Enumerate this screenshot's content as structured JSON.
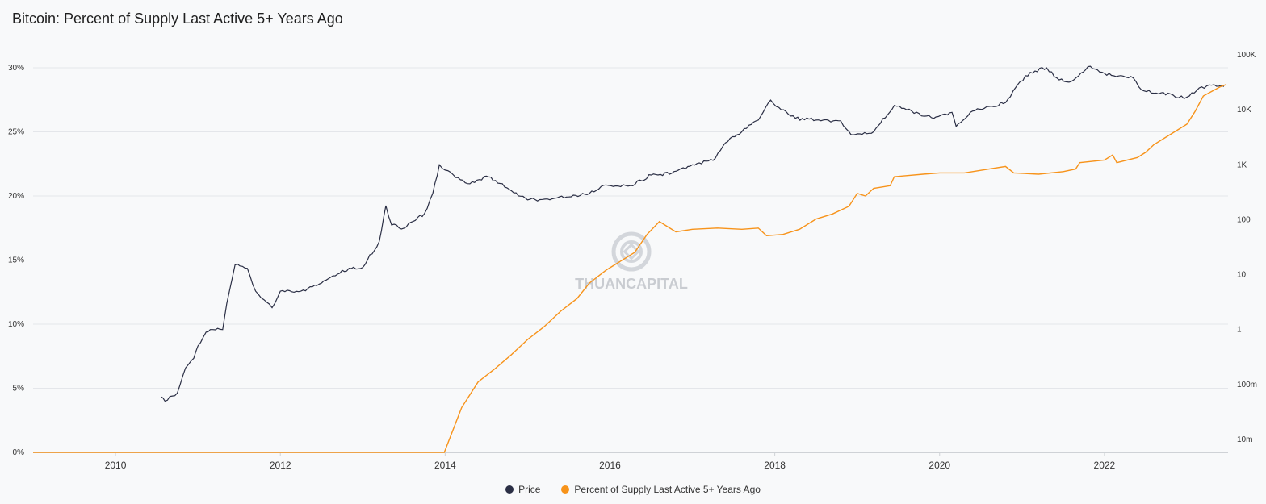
{
  "title": "Bitcoin: Percent of Supply Last Active 5+ Years Ago",
  "watermark": "THUANCAPITAL",
  "colors": {
    "price": "#2b2f45",
    "supply": "#f7931a",
    "grid": "#e4e6ea",
    "background": "#f8f9fa"
  },
  "legend": [
    {
      "label": "Price",
      "color": "#2b2f45"
    },
    {
      "label": "Percent of Supply Last Active 5+ Years Ago",
      "color": "#f7931a"
    }
  ],
  "chart_data": {
    "type": "line",
    "title": "Bitcoin: Percent of Supply Last Active 5+ Years Ago",
    "x_range": [
      2009.0,
      2023.5
    ],
    "x_ticks": [
      "2010",
      "2012",
      "2014",
      "2016",
      "2018",
      "2020",
      "2022"
    ],
    "y_left": {
      "range": [
        0,
        30
      ],
      "ticks": [
        "0%",
        "5%",
        "10%",
        "15%",
        "20%",
        "25%",
        "30%"
      ],
      "unit": "percent"
    },
    "y_right": {
      "scale": "log",
      "range": [
        0.01,
        100000
      ],
      "ticks": [
        "10m",
        "100m",
        "1",
        "10",
        "100",
        "1K",
        "10K",
        "100K"
      ]
    },
    "grid": true,
    "legend_position": "bottom",
    "series": [
      {
        "name": "Price",
        "axis": "right",
        "points": [
          [
            2010.55,
            0.06
          ],
          [
            2010.6,
            0.05
          ],
          [
            2010.75,
            0.07
          ],
          [
            2010.85,
            0.2
          ],
          [
            2010.95,
            0.3
          ],
          [
            2011.0,
            0.5
          ],
          [
            2011.1,
            0.9
          ],
          [
            2011.15,
            1.0
          ],
          [
            2011.3,
            1.0
          ],
          [
            2011.35,
            3.0
          ],
          [
            2011.45,
            15.0
          ],
          [
            2011.6,
            13.0
          ],
          [
            2011.7,
            5.0
          ],
          [
            2011.8,
            3.5
          ],
          [
            2011.9,
            2.5
          ],
          [
            2012.0,
            5.0
          ],
          [
            2012.25,
            5.0
          ],
          [
            2012.5,
            7.0
          ],
          [
            2012.75,
            12.0
          ],
          [
            2013.0,
            13.5
          ],
          [
            2013.2,
            40.0
          ],
          [
            2013.28,
            180.0
          ],
          [
            2013.35,
            80.0
          ],
          [
            2013.5,
            70.0
          ],
          [
            2013.75,
            130.0
          ],
          [
            2013.85,
            300.0
          ],
          [
            2013.93,
            1000.0
          ],
          [
            2014.0,
            800.0
          ],
          [
            2014.1,
            650.0
          ],
          [
            2014.3,
            450.0
          ],
          [
            2014.5,
            620.0
          ],
          [
            2014.75,
            380.0
          ],
          [
            2015.0,
            230.0
          ],
          [
            2015.3,
            240.0
          ],
          [
            2015.5,
            260.0
          ],
          [
            2015.75,
            300.0
          ],
          [
            2015.95,
            430.0
          ],
          [
            2016.25,
            420.0
          ],
          [
            2016.5,
            650.0
          ],
          [
            2016.75,
            700.0
          ],
          [
            2017.0,
            1000.0
          ],
          [
            2017.25,
            1200.0
          ],
          [
            2017.4,
            2500.0
          ],
          [
            2017.6,
            4000.0
          ],
          [
            2017.8,
            6500.0
          ],
          [
            2017.95,
            15000.0
          ],
          [
            2018.05,
            11000.0
          ],
          [
            2018.25,
            7000.0
          ],
          [
            2018.5,
            6500.0
          ],
          [
            2018.8,
            6300.0
          ],
          [
            2018.9,
            4000.0
          ],
          [
            2018.95,
            3500.0
          ],
          [
            2019.2,
            4000.0
          ],
          [
            2019.45,
            12000.0
          ],
          [
            2019.6,
            10000.0
          ],
          [
            2019.9,
            7200.0
          ],
          [
            2020.15,
            9000.0
          ],
          [
            2020.2,
            5000.0
          ],
          [
            2020.4,
            9500.0
          ],
          [
            2020.6,
            11500.0
          ],
          [
            2020.8,
            13500.0
          ],
          [
            2020.95,
            29000.0
          ],
          [
            2021.1,
            48000.0
          ],
          [
            2021.3,
            58000.0
          ],
          [
            2021.45,
            35000.0
          ],
          [
            2021.6,
            33000.0
          ],
          [
            2021.8,
            61000.0
          ],
          [
            2022.0,
            46000.0
          ],
          [
            2022.2,
            42000.0
          ],
          [
            2022.35,
            38000.0
          ],
          [
            2022.45,
            23000.0
          ],
          [
            2022.6,
            20000.0
          ],
          [
            2022.8,
            19500.0
          ],
          [
            2022.9,
            16500.0
          ],
          [
            2023.0,
            17000.0
          ],
          [
            2023.15,
            25000.0
          ],
          [
            2023.3,
            28000.0
          ],
          [
            2023.45,
            26500.0
          ]
        ]
      },
      {
        "name": "Percent of Supply Last Active 5+ Years Ago",
        "axis": "left",
        "points": [
          [
            2009.0,
            0.0
          ],
          [
            2013.99,
            0.0
          ],
          [
            2014.2,
            3.5
          ],
          [
            2014.4,
            5.5
          ],
          [
            2014.6,
            6.5
          ],
          [
            2014.8,
            7.6
          ],
          [
            2015.0,
            8.8
          ],
          [
            2015.2,
            9.8
          ],
          [
            2015.4,
            11.0
          ],
          [
            2015.6,
            12.0
          ],
          [
            2015.75,
            13.2
          ],
          [
            2015.95,
            14.2
          ],
          [
            2016.1,
            14.8
          ],
          [
            2016.3,
            15.6
          ],
          [
            2016.45,
            17.0
          ],
          [
            2016.6,
            18.0
          ],
          [
            2016.8,
            17.2
          ],
          [
            2017.0,
            17.4
          ],
          [
            2017.3,
            17.5
          ],
          [
            2017.6,
            17.4
          ],
          [
            2017.8,
            17.5
          ],
          [
            2017.9,
            16.9
          ],
          [
            2018.1,
            17.0
          ],
          [
            2018.3,
            17.4
          ],
          [
            2018.5,
            18.2
          ],
          [
            2018.7,
            18.6
          ],
          [
            2018.9,
            19.2
          ],
          [
            2019.0,
            20.2
          ],
          [
            2019.1,
            20.0
          ],
          [
            2019.2,
            20.6
          ],
          [
            2019.4,
            20.8
          ],
          [
            2019.45,
            21.5
          ],
          [
            2019.8,
            21.7
          ],
          [
            2020.0,
            21.8
          ],
          [
            2020.3,
            21.8
          ],
          [
            2020.6,
            22.1
          ],
          [
            2020.8,
            22.3
          ],
          [
            2020.9,
            21.8
          ],
          [
            2021.2,
            21.7
          ],
          [
            2021.5,
            21.9
          ],
          [
            2021.65,
            22.1
          ],
          [
            2021.7,
            22.6
          ],
          [
            2022.0,
            22.8
          ],
          [
            2022.1,
            23.2
          ],
          [
            2022.15,
            22.6
          ],
          [
            2022.4,
            23.0
          ],
          [
            2022.5,
            23.4
          ],
          [
            2022.6,
            24.0
          ],
          [
            2022.75,
            24.6
          ],
          [
            2023.0,
            25.6
          ],
          [
            2023.1,
            26.6
          ],
          [
            2023.2,
            27.8
          ],
          [
            2023.4,
            28.5
          ],
          [
            2023.48,
            28.7
          ]
        ]
      }
    ]
  }
}
